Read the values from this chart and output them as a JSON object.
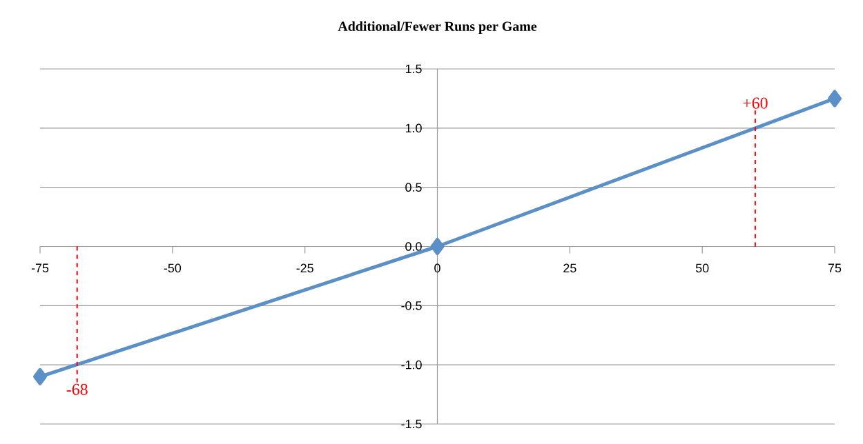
{
  "chart_data": {
    "type": "line",
    "title": "Additional/Fewer Runs per Game",
    "x": [
      -75,
      0,
      75
    ],
    "series": [
      {
        "color": "#5b8fc8",
        "values": [
          -1.1,
          0,
          1.25
        ]
      }
    ],
    "xlim": [
      -75,
      75
    ],
    "ylim": [
      -1.5,
      1.5
    ],
    "xticks": [
      -75,
      -50,
      -25,
      0,
      25,
      50,
      75
    ],
    "yticks": [
      -1.5,
      {
        "value": -1,
        "label": "-1.0"
      },
      -0.5,
      {
        "value": 0,
        "label": "0.0"
      },
      0.5,
      {
        "value": 1,
        "label": "1.0"
      },
      1.5
    ],
    "grid": "y",
    "marker": "diamond",
    "line_style": "solid",
    "ref_lines": [
      {
        "axis": "x",
        "value": 60,
        "label": "+60",
        "color": "#ff0000",
        "line_style": "dashed"
      },
      {
        "axis": "x",
        "value": -68,
        "label": "-68",
        "color": "#ff0000",
        "line_style": "dashed"
      }
    ]
  }
}
